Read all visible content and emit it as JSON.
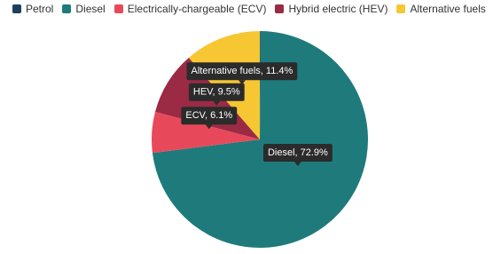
{
  "chart_data": {
    "type": "pie",
    "categories": [
      "Petrol",
      "Diesel",
      "Electrically-chargeable (ECV)",
      "Hybrid electric (HEV)",
      "Alternative fuels"
    ],
    "values": [
      0.1,
      72.9,
      6.1,
      9.5,
      11.4
    ],
    "value_labels": [
      null,
      "Diesel, 72.9%",
      "ECV, 6.1%",
      "HEV, 9.5%",
      "Alternative fuels, 11.4%"
    ],
    "colors": [
      "#1d3f5e",
      "#1f7b7b",
      "#e8495a",
      "#9b2a45",
      "#f6c733"
    ],
    "legend": "top"
  }
}
